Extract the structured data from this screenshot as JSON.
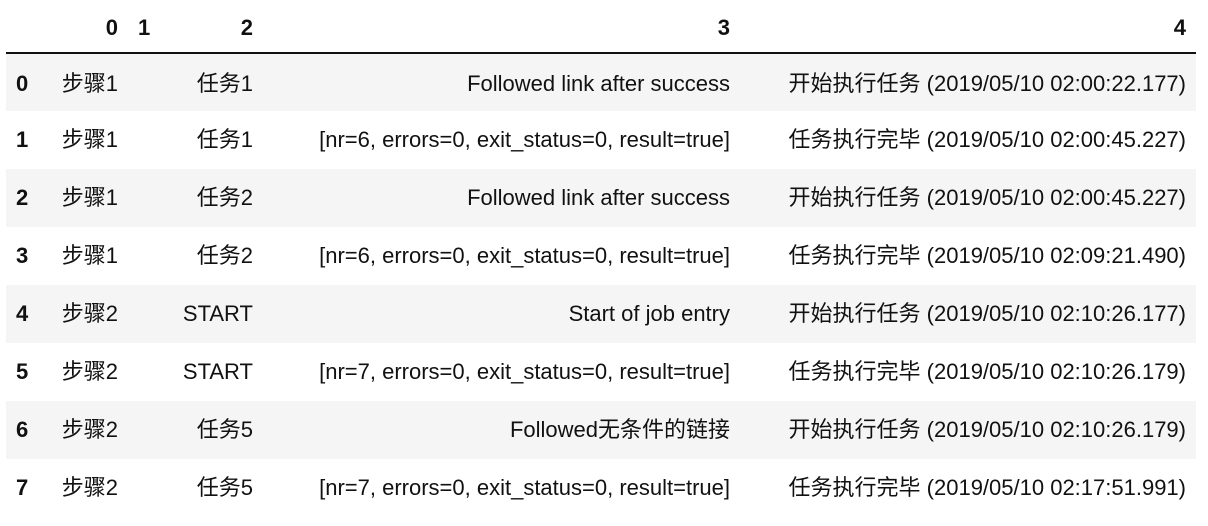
{
  "table": {
    "columns": [
      "",
      "0",
      "1",
      "2",
      "3",
      "4"
    ],
    "rows": [
      {
        "index": "0",
        "c0": "步骤1",
        "c1": "",
        "c2": "任务1",
        "c3": "Followed link after success",
        "c4": "开始执行任务 (2019/05/10 02:00:22.177)"
      },
      {
        "index": "1",
        "c0": "步骤1",
        "c1": "",
        "c2": "任务1",
        "c3": "[nr=6, errors=0, exit_status=0, result=true]",
        "c4": "任务执行完毕 (2019/05/10 02:00:45.227)"
      },
      {
        "index": "2",
        "c0": "步骤1",
        "c1": "",
        "c2": "任务2",
        "c3": "Followed link after success",
        "c4": "开始执行任务 (2019/05/10 02:00:45.227)"
      },
      {
        "index": "3",
        "c0": "步骤1",
        "c1": "",
        "c2": "任务2",
        "c3": "[nr=6, errors=0, exit_status=0, result=true]",
        "c4": "任务执行完毕 (2019/05/10 02:09:21.490)"
      },
      {
        "index": "4",
        "c0": "步骤2",
        "c1": "",
        "c2": "START",
        "c3": "Start of job entry",
        "c4": "开始执行任务 (2019/05/10 02:10:26.177)"
      },
      {
        "index": "5",
        "c0": "步骤2",
        "c1": "",
        "c2": "START",
        "c3": "[nr=7, errors=0, exit_status=0, result=true]",
        "c4": "任务执行完毕 (2019/05/10 02:10:26.179)"
      },
      {
        "index": "6",
        "c0": "步骤2",
        "c1": "",
        "c2": "任务5",
        "c3": "Followed无条件的链接",
        "c4": "开始执行任务 (2019/05/10 02:10:26.179)"
      },
      {
        "index": "7",
        "c0": "步骤2",
        "c1": "",
        "c2": "任务5",
        "c3": "[nr=7, errors=0, exit_status=0, result=true]",
        "c4": "任务执行完毕 (2019/05/10 02:17:51.991)"
      }
    ]
  }
}
